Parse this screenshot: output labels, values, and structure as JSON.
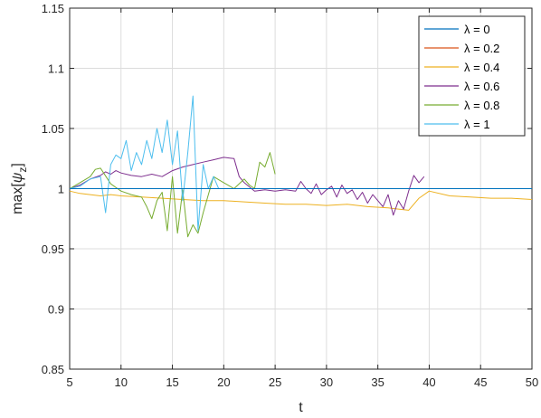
{
  "chart_data": {
    "type": "line",
    "title": "",
    "xlabel": "t",
    "ylabel": "max[ψ_z]",
    "ylabel_parts": {
      "prefix": "max[",
      "symbol": "ψ",
      "subscript": "z",
      "suffix": "]"
    },
    "xlim": [
      5,
      50
    ],
    "ylim": [
      0.85,
      1.15
    ],
    "x_ticks": [
      5,
      10,
      15,
      20,
      25,
      30,
      35,
      40,
      45,
      50
    ],
    "x_tick_labels": [
      "5",
      "10",
      "15",
      "20",
      "25",
      "30",
      "35",
      "40",
      "45",
      "50"
    ],
    "y_ticks": [
      0.85,
      0.9,
      0.95,
      1.0,
      1.05,
      1.1,
      1.15
    ],
    "y_tick_labels": [
      "0.85",
      "0.9",
      "0.95",
      "1",
      "1.05",
      "1.1",
      "1.15"
    ],
    "grid": true,
    "legend_position": "top-right",
    "series": [
      {
        "name": "λ = 0",
        "color": "#0072BD",
        "x": [
          5,
          50
        ],
        "y": [
          1.0,
          1.0
        ]
      },
      {
        "name": "λ = 0.2",
        "color": "#D95319",
        "x": [
          5,
          40
        ],
        "y": [
          1.0,
          1.0
        ]
      },
      {
        "name": "λ = 0.4",
        "color": "#EDB120",
        "x": [
          5,
          6,
          7,
          8,
          9,
          10,
          12,
          14,
          16,
          18,
          20,
          22,
          24,
          26,
          28,
          30,
          32,
          34,
          36,
          37,
          38,
          39,
          40,
          42,
          44,
          46,
          48,
          50
        ],
        "y": [
          0.998,
          0.996,
          0.995,
          0.994,
          0.995,
          0.994,
          0.993,
          0.992,
          0.991,
          0.99,
          0.99,
          0.989,
          0.988,
          0.987,
          0.987,
          0.986,
          0.987,
          0.985,
          0.984,
          0.983,
          0.982,
          0.992,
          0.998,
          0.994,
          0.993,
          0.992,
          0.992,
          0.991
        ]
      },
      {
        "name": "λ = 0.6",
        "color": "#7E2F8E",
        "x": [
          5,
          6,
          7,
          8,
          8.5,
          9,
          9.5,
          10,
          11,
          12,
          13,
          14,
          15,
          16,
          17,
          18,
          19,
          20,
          21,
          21.5,
          22,
          23,
          24,
          25,
          26,
          27,
          27.5,
          28,
          28.5,
          29,
          29.5,
          30,
          30.5,
          31,
          31.5,
          32,
          32.5,
          33,
          33.5,
          34,
          34.5,
          35,
          35.5,
          36,
          36.5,
          37,
          37.5,
          38,
          38.5,
          39,
          39.5
        ],
        "y": [
          1.0,
          1.003,
          1.008,
          1.011,
          1.014,
          1.012,
          1.015,
          1.013,
          1.011,
          1.01,
          1.012,
          1.01,
          1.015,
          1.018,
          1.02,
          1.022,
          1.024,
          1.026,
          1.025,
          1.01,
          1.005,
          0.998,
          0.999,
          0.998,
          0.999,
          0.998,
          1.006,
          1.0,
          0.996,
          1.004,
          0.995,
          0.999,
          1.002,
          0.993,
          1.003,
          0.996,
          0.999,
          0.991,
          0.997,
          0.988,
          0.995,
          0.99,
          0.985,
          0.995,
          0.978,
          0.99,
          0.983,
          0.998,
          1.011,
          1.005,
          1.01
        ]
      },
      {
        "name": "λ = 0.8",
        "color": "#77AC30",
        "x": [
          5,
          6,
          7,
          7.5,
          8,
          9,
          10,
          11,
          12,
          12.5,
          13,
          13.5,
          14,
          14.5,
          15,
          15.5,
          16,
          16.5,
          17,
          17.5,
          18,
          19,
          20,
          21,
          22,
          22.5,
          23,
          23.5,
          24,
          24.5,
          25
        ],
        "y": [
          1.0,
          1.005,
          1.01,
          1.016,
          1.017,
          1.004,
          0.998,
          0.995,
          0.993,
          0.985,
          0.975,
          0.99,
          0.997,
          0.965,
          1.01,
          0.963,
          0.999,
          0.96,
          0.97,
          0.963,
          0.98,
          1.01,
          1.005,
          1.0,
          1.008,
          1.003,
          1.0,
          1.022,
          1.018,
          1.03,
          1.012
        ]
      },
      {
        "name": "λ = 1",
        "color": "#4DBEEE",
        "x": [
          5,
          6,
          7,
          8,
          8.5,
          9,
          9.5,
          10,
          10.5,
          11,
          11.5,
          12,
          12.5,
          13,
          13.5,
          14,
          14.5,
          15,
          15.5,
          16,
          16.5,
          17,
          17.5,
          18,
          18.5,
          19,
          19.5
        ],
        "y": [
          1.0,
          1.002,
          1.008,
          1.01,
          0.98,
          1.02,
          1.028,
          1.025,
          1.04,
          1.015,
          1.03,
          1.02,
          1.04,
          1.025,
          1.05,
          1.03,
          1.057,
          1.02,
          1.048,
          0.99,
          1.03,
          1.077,
          0.965,
          1.02,
          1.0,
          1.01,
          1.0
        ]
      }
    ]
  }
}
